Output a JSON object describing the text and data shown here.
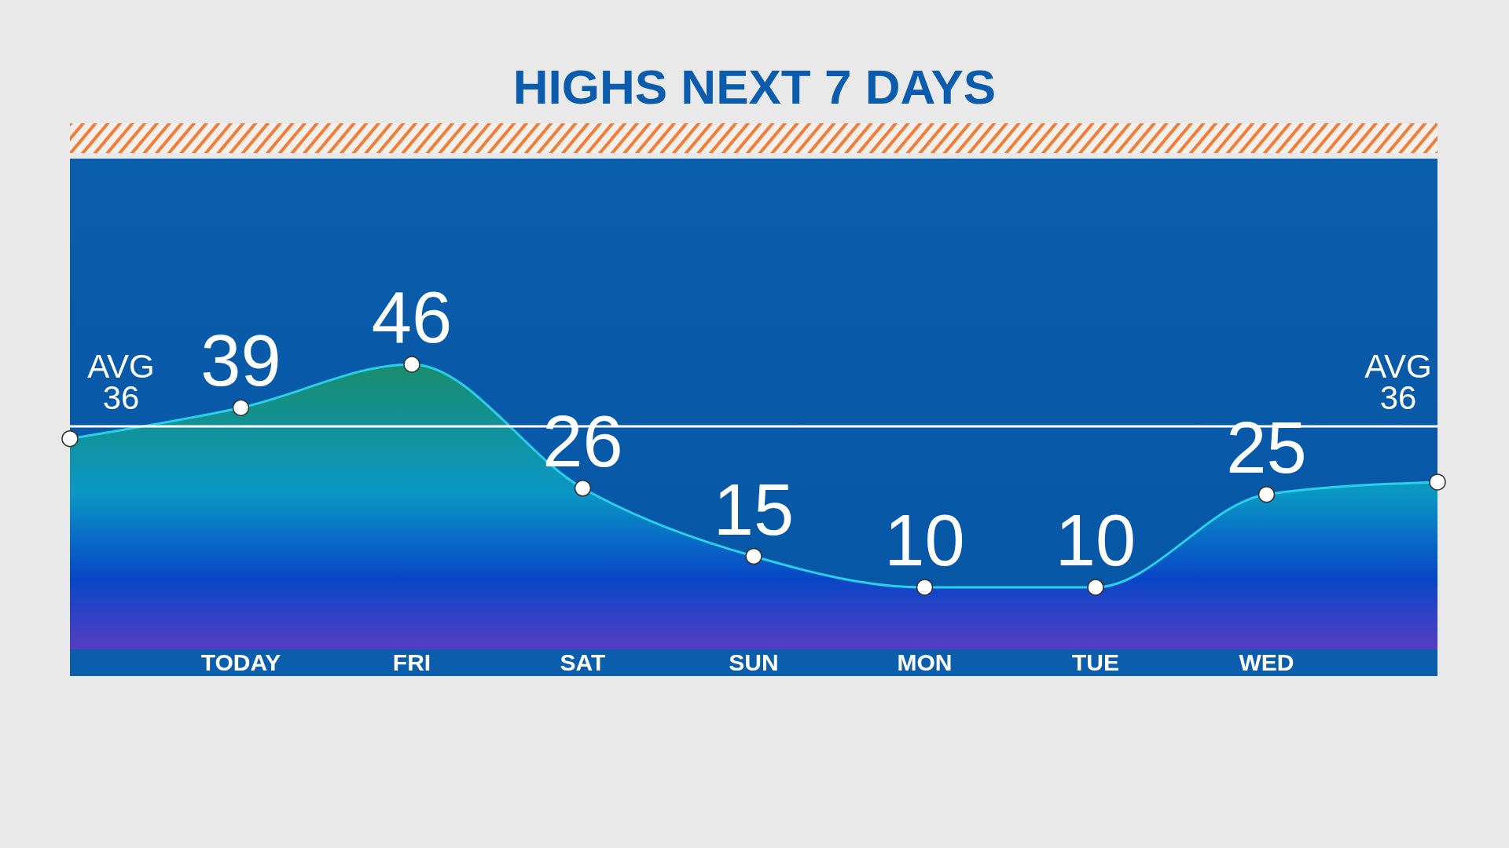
{
  "chart_data": {
    "type": "area",
    "title": "HIGHS NEXT 7 DAYS",
    "categories": [
      null,
      "TODAY",
      "FRI",
      "SAT",
      "SUN",
      "MON",
      "TUE",
      "WED",
      null
    ],
    "series": [
      {
        "color": "#2ad0e8",
        "values": [
          34,
          39,
          46,
          26,
          15,
          10,
          10,
          25,
          27
        ],
        "value_labels": [
          null,
          "39",
          "46",
          "26",
          "15",
          "10",
          "10",
          "25",
          null
        ]
      }
    ],
    "marker": "circle",
    "ref_lines": [
      {
        "axis": "y",
        "value": 36,
        "label": "AVG 36",
        "color": "#ffffff"
      }
    ]
  }
}
